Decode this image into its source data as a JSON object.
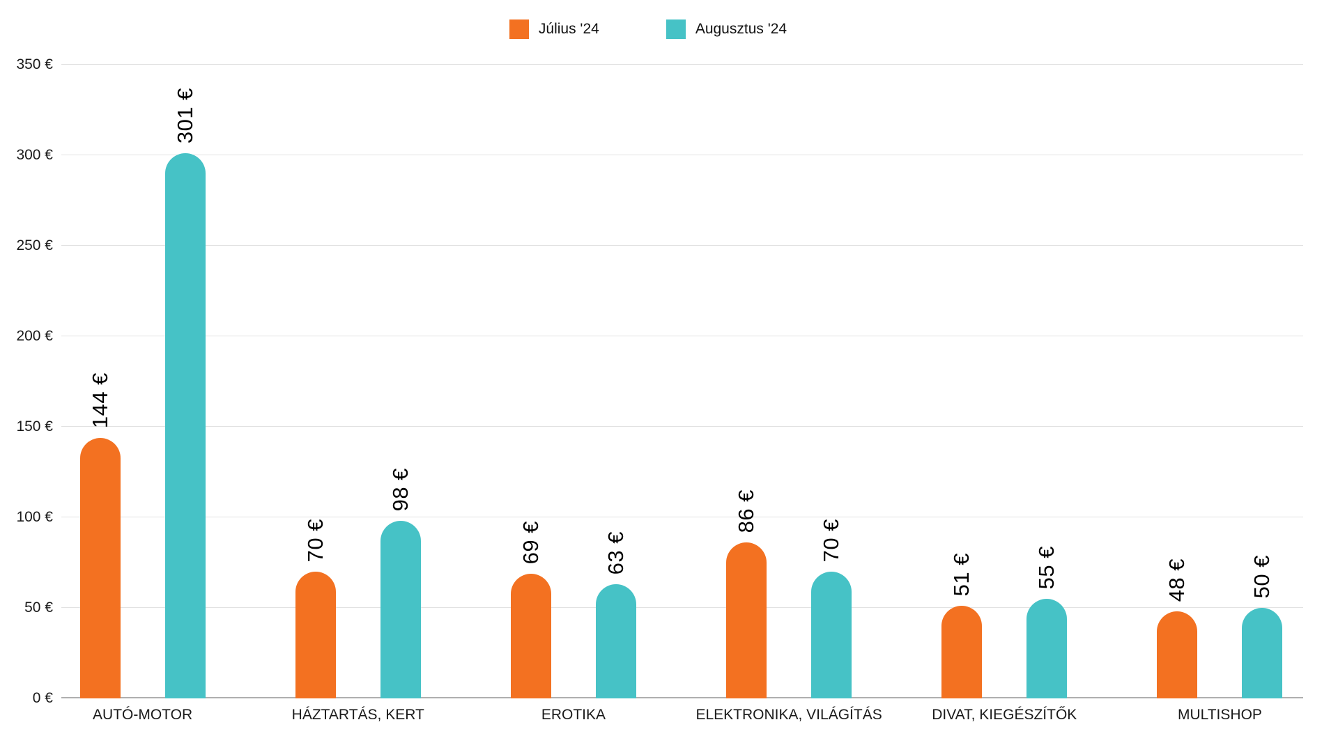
{
  "chart_data": {
    "type": "bar",
    "title": "",
    "categories": [
      "AUTÓ-MOTOR",
      "HÁZTARTÁS, KERT",
      "EROTIKA",
      "ELEKTRONIKA, VILÁGÍTÁS",
      "DIVAT, KIEGÉSZÍTŐK",
      "MULTISHOP"
    ],
    "series": [
      {
        "name": "Július '24",
        "color": "#F37121",
        "values": [
          144,
          70,
          69,
          86,
          51,
          48
        ]
      },
      {
        "name": "Augusztus '24",
        "color": "#46C2C6",
        "values": [
          301,
          98,
          63,
          70,
          55,
          50
        ]
      }
    ],
    "value_suffix": " €",
    "y_ticks": [
      0,
      50,
      100,
      150,
      200,
      250,
      300,
      350
    ],
    "y_tick_suffix": " €",
    "ylim": [
      0,
      350
    ],
    "grid": true,
    "legend_position": "top",
    "bar_cap": "rounded-top",
    "value_label_rotation": -90
  },
  "colors": {
    "gridline": "#E2E2E2",
    "baseline": "#AFAFAF",
    "background": "#FFFFFF",
    "text": "#000000"
  }
}
